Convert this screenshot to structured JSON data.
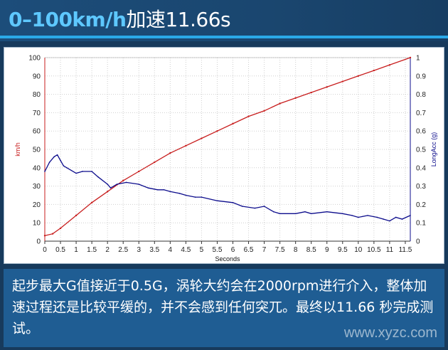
{
  "banner": {
    "title_highlight": "0–100km/h",
    "title_rest": "加速11.66s"
  },
  "caption": {
    "text": "起步最大G值接近于0.5G，涡轮大约会在2000rpm进行介入，整体加速过程还是比较平缓的，并不会感到任何突兀。最终以11.66 秒完成测试。"
  },
  "watermark": {
    "text": "www.xyzc.com"
  },
  "colors": {
    "speed": "#c81e1e",
    "accel": "#0c0c8c",
    "grid": "#cfcfcf",
    "accent": "#2aa9e8"
  },
  "chart_data": {
    "type": "line",
    "xlabel": "Seconds",
    "ylabel": "km/h",
    "y2label": "LongAcc (g)",
    "xlim": [
      0,
      11.66
    ],
    "ylim": [
      0,
      100
    ],
    "y2lim": [
      0,
      1
    ],
    "xticks": [
      "0",
      "0.5",
      "1",
      "1.5",
      "2",
      "2.5",
      "3",
      "3.5",
      "4",
      "4.5",
      "5",
      "5.5",
      "6",
      "6.5",
      "7",
      "7.5",
      "8",
      "8.5",
      "9",
      "9.5",
      "10",
      "10.5",
      "11",
      "11.5"
    ],
    "yticks": [
      "0",
      "10",
      "20",
      "30",
      "40",
      "50",
      "60",
      "70",
      "80",
      "90",
      "100"
    ],
    "y2ticks": [
      "0",
      "0.1",
      "0.2",
      "0.3",
      "0.4",
      "0.5",
      "0.6",
      "0.7",
      "0.8",
      "0.9",
      "1"
    ],
    "grid": true,
    "series": [
      {
        "name": "km/h",
        "axis": "left",
        "x": [
          0,
          0.25,
          0.5,
          1,
          1.5,
          2,
          2.5,
          3,
          3.5,
          4,
          4.5,
          5,
          5.5,
          6,
          6.5,
          7,
          7.5,
          8,
          8.5,
          9,
          9.5,
          10,
          10.5,
          11,
          11.66
        ],
        "values": [
          3,
          4,
          7,
          14,
          21,
          27,
          33,
          38,
          43,
          48,
          52,
          56,
          60,
          64,
          68,
          71,
          75,
          78,
          81,
          84,
          87,
          90,
          93,
          96,
          100
        ]
      },
      {
        "name": "LongAcc (g)",
        "axis": "right",
        "x": [
          0,
          0.15,
          0.3,
          0.4,
          0.5,
          0.6,
          0.7,
          1.0,
          1.2,
          1.5,
          1.7,
          2.0,
          2.1,
          2.3,
          2.6,
          3.0,
          3.3,
          3.6,
          3.8,
          4.0,
          4.3,
          4.5,
          4.8,
          5.0,
          5.5,
          6.0,
          6.3,
          6.7,
          7.0,
          7.3,
          7.5,
          8.0,
          8.3,
          8.5,
          9.0,
          9.5,
          9.8,
          10.0,
          10.3,
          10.6,
          10.8,
          11.0,
          11.2,
          11.4,
          11.66
        ],
        "values": [
          0.38,
          0.43,
          0.46,
          0.47,
          0.44,
          0.41,
          0.4,
          0.37,
          0.38,
          0.38,
          0.35,
          0.31,
          0.29,
          0.31,
          0.32,
          0.31,
          0.29,
          0.28,
          0.28,
          0.27,
          0.26,
          0.25,
          0.24,
          0.24,
          0.22,
          0.21,
          0.19,
          0.18,
          0.19,
          0.16,
          0.15,
          0.15,
          0.16,
          0.15,
          0.16,
          0.15,
          0.14,
          0.13,
          0.14,
          0.13,
          0.12,
          0.11,
          0.13,
          0.12,
          0.14
        ]
      }
    ]
  }
}
